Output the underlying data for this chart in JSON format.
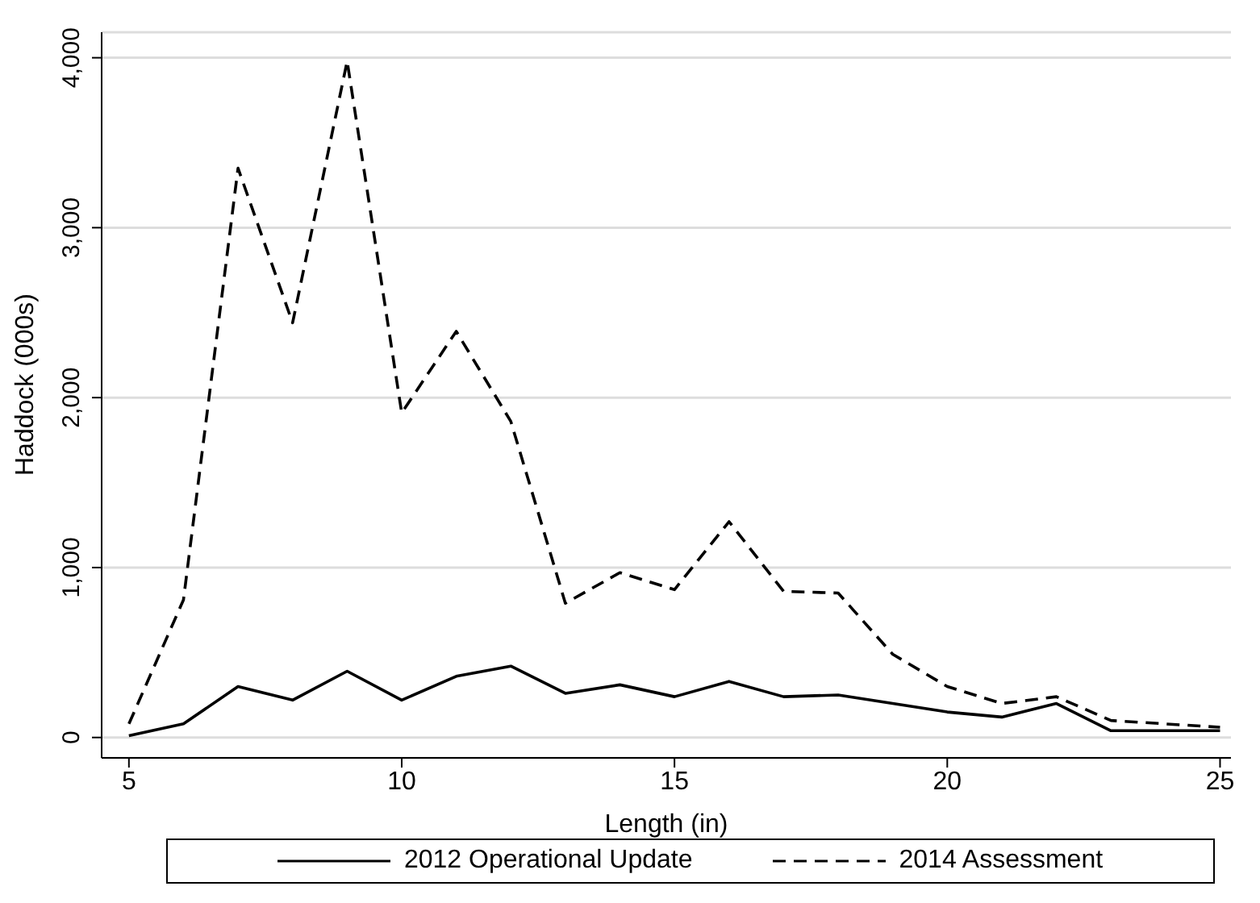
{
  "chart_data": {
    "type": "line",
    "xlabel": "Length (in)",
    "ylabel": "Haddock (000s)",
    "x": [
      5,
      6,
      7,
      8,
      9,
      10,
      11,
      12,
      13,
      14,
      15,
      16,
      17,
      18,
      19,
      20,
      21,
      22,
      23,
      24,
      25
    ],
    "series": [
      {
        "name": "2012 Operational Update",
        "color": "#000000",
        "line_style": "solid",
        "values": [
          10,
          80,
          300,
          220,
          390,
          220,
          360,
          420,
          260,
          310,
          240,
          330,
          240,
          250,
          200,
          150,
          120,
          200,
          40,
          40,
          40
        ]
      },
      {
        "name": "2014 Assessment",
        "color": "#000000",
        "line_style": "dashed",
        "values": [
          80,
          810,
          3350,
          2440,
          3980,
          1910,
          2390,
          1860,
          790,
          970,
          870,
          1270,
          860,
          850,
          490,
          300,
          200,
          240,
          100,
          80,
          60
        ]
      }
    ],
    "xlim": [
      4.5,
      25.2
    ],
    "xticks": [
      5,
      10,
      15,
      20,
      25
    ],
    "ylim": [
      -120,
      4150
    ],
    "yticks": [
      {
        "value": 0,
        "label": "0"
      },
      {
        "value": 1000,
        "label": "1,000"
      },
      {
        "value": 2000,
        "label": "2,000"
      },
      {
        "value": 3000,
        "label": "3,000"
      },
      {
        "value": 4000,
        "label": "4,000"
      }
    ],
    "grid": "y",
    "legend": "bottom",
    "marker": "none"
  }
}
